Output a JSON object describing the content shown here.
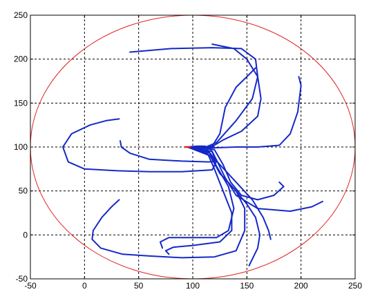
{
  "chart_data": {
    "type": "line",
    "title": "",
    "xlabel": "",
    "ylabel": "",
    "xlim": [
      -50,
      250
    ],
    "ylim": [
      -50,
      250
    ],
    "xticks": [
      -50,
      0,
      50,
      100,
      150,
      200,
      250
    ],
    "yticks": [
      -50,
      0,
      50,
      100,
      150,
      200,
      250
    ],
    "x_tick_labels": [
      "-50",
      "0",
      "50",
      "100",
      "150",
      "200",
      "250"
    ],
    "y_tick_labels": [
      "-50",
      "0",
      "50",
      "100",
      "150",
      "200",
      "250"
    ],
    "grid": true,
    "legend": "none",
    "colors": {
      "trajectory": "#1428c8",
      "boundary": "#e02020",
      "start": "#e02020",
      "axes": "#000000"
    },
    "boundary": {
      "shape": "ellipse",
      "center": [
        100,
        100
      ],
      "rx": 150,
      "ry": 150
    },
    "start_point": [
      95,
      100
    ],
    "series": [
      {
        "values": [
          [
            95,
            100
          ],
          [
            104,
            101
          ],
          [
            111,
            101
          ],
          [
            116,
            99
          ],
          [
            122,
            84
          ],
          [
            118,
            74
          ],
          [
            90,
            72
          ],
          [
            60,
            72
          ],
          [
            30,
            73
          ],
          [
            0,
            75
          ],
          [
            -15,
            83
          ],
          [
            -20,
            100
          ],
          [
            -12,
            115
          ],
          [
            5,
            125
          ],
          [
            20,
            130
          ],
          [
            32,
            132
          ]
        ]
      },
      {
        "values": [
          [
            95,
            100
          ],
          [
            105,
            100
          ],
          [
            112,
            99
          ],
          [
            118,
            90
          ],
          [
            121,
            84
          ],
          [
            115,
            83
          ],
          [
            90,
            84
          ],
          [
            60,
            86
          ],
          [
            42,
            93
          ],
          [
            34,
            100
          ],
          [
            33,
            107
          ]
        ]
      },
      {
        "values": [
          [
            95,
            100
          ],
          [
            110,
            100
          ],
          [
            118,
            101
          ],
          [
            125,
            115
          ],
          [
            130,
            145
          ],
          [
            140,
            168
          ],
          [
            150,
            180
          ],
          [
            158,
            190
          ]
        ]
      },
      {
        "values": [
          [
            95,
            100
          ],
          [
            112,
            100
          ],
          [
            122,
            105
          ],
          [
            140,
            130
          ],
          [
            155,
            155
          ],
          [
            160,
            180
          ],
          [
            158,
            200
          ],
          [
            145,
            212
          ],
          [
            118,
            213
          ],
          [
            80,
            212
          ],
          [
            42,
            208
          ]
        ]
      },
      {
        "values": [
          [
            95,
            100
          ],
          [
            116,
            99
          ],
          [
            128,
            108
          ],
          [
            145,
            118
          ],
          [
            160,
            135
          ],
          [
            163,
            155
          ],
          [
            160,
            180
          ],
          [
            150,
            200
          ],
          [
            138,
            212
          ],
          [
            118,
            217
          ]
        ]
      },
      {
        "values": [
          [
            95,
            100
          ],
          [
            118,
            99
          ],
          [
            140,
            100
          ],
          [
            160,
            100
          ],
          [
            180,
            102
          ],
          [
            190,
            115
          ],
          [
            197,
            140
          ],
          [
            200,
            170
          ],
          [
            198,
            180
          ]
        ]
      },
      {
        "values": [
          [
            95,
            100
          ],
          [
            120,
            97
          ],
          [
            128,
            80
          ],
          [
            135,
            60
          ],
          [
            145,
            45
          ],
          [
            160,
            40
          ],
          [
            175,
            45
          ],
          [
            184,
            55
          ],
          [
            180,
            60
          ]
        ]
      },
      {
        "values": [
          [
            95,
            100
          ],
          [
            118,
            95
          ],
          [
            122,
            85
          ],
          [
            130,
            65
          ],
          [
            140,
            45
          ],
          [
            160,
            30
          ],
          [
            190,
            27
          ],
          [
            210,
            32
          ],
          [
            220,
            38
          ]
        ]
      },
      {
        "values": [
          [
            95,
            100
          ],
          [
            116,
            93
          ],
          [
            125,
            70
          ],
          [
            140,
            50
          ],
          [
            150,
            35
          ],
          [
            158,
            20
          ],
          [
            162,
            0
          ],
          [
            160,
            -15
          ],
          [
            152,
            -35
          ]
        ]
      },
      {
        "values": [
          [
            95,
            100
          ],
          [
            114,
            95
          ],
          [
            125,
            80
          ],
          [
            140,
            60
          ],
          [
            155,
            40
          ],
          [
            165,
            20
          ],
          [
            170,
            5
          ],
          [
            172,
            -5
          ]
        ]
      },
      {
        "values": [
          [
            95,
            100
          ],
          [
            115,
            94
          ],
          [
            122,
            78
          ],
          [
            133,
            55
          ],
          [
            138,
            30
          ],
          [
            133,
            5
          ],
          [
            122,
            -3
          ],
          [
            100,
            -3
          ],
          [
            78,
            -3
          ],
          [
            70,
            -8
          ],
          [
            72,
            -15
          ]
        ]
      },
      {
        "values": [
          [
            95,
            100
          ],
          [
            114,
            92
          ],
          [
            120,
            75
          ],
          [
            128,
            50
          ],
          [
            136,
            25
          ],
          [
            136,
            5
          ],
          [
            125,
            -8
          ],
          [
            100,
            -12
          ],
          [
            82,
            -14
          ],
          [
            75,
            -18
          ],
          [
            78,
            -22
          ]
        ]
      },
      {
        "values": [
          [
            95,
            100
          ],
          [
            116,
            90
          ],
          [
            125,
            70
          ],
          [
            140,
            50
          ],
          [
            148,
            30
          ],
          [
            148,
            5
          ],
          [
            140,
            -18
          ],
          [
            120,
            -25
          ],
          [
            90,
            -26
          ],
          [
            60,
            -24
          ],
          [
            35,
            -22
          ],
          [
            15,
            -15
          ],
          [
            7,
            -5
          ],
          [
            8,
            5
          ],
          [
            16,
            20
          ],
          [
            25,
            32
          ],
          [
            32,
            40
          ]
        ]
      }
    ]
  }
}
